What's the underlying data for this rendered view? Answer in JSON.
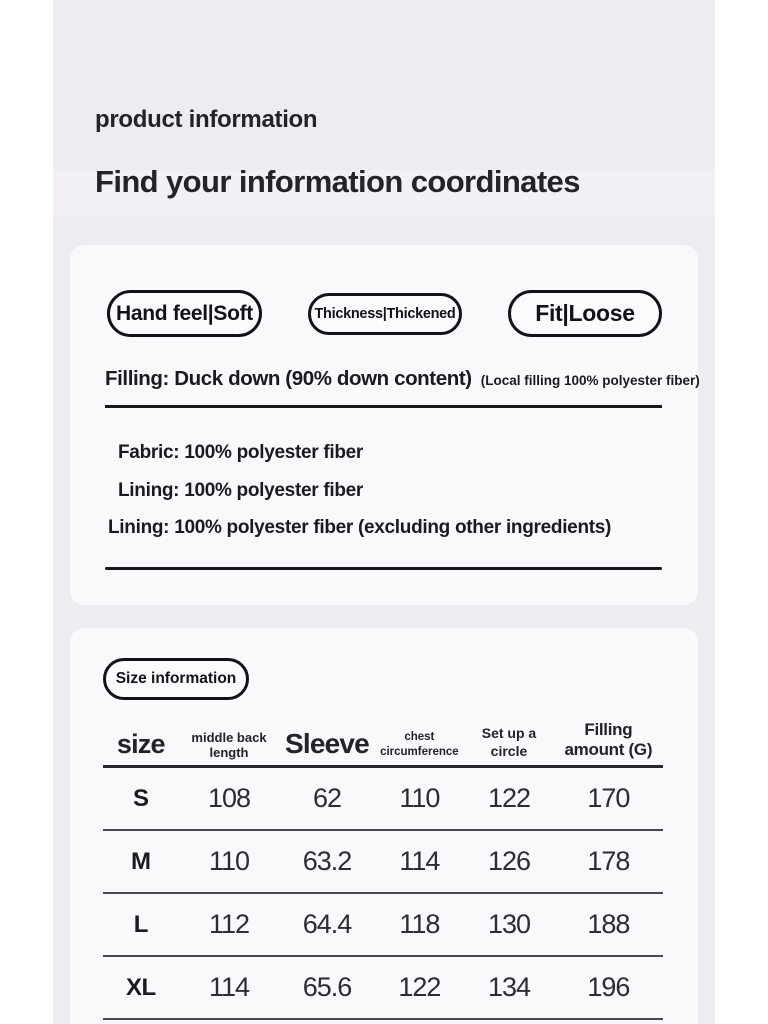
{
  "header": {
    "subtitle": "product information",
    "title": "Find your information coordinates"
  },
  "product_card": {
    "tags": [
      "Hand feel|Soft",
      "Thickness|Thickened",
      "Fit|Loose"
    ],
    "filling": "Filling: Duck down (90% down content)",
    "filling_note": "(Local filling 100% polyester fiber)",
    "materials": [
      "Fabric: 100% polyester fiber",
      "Lining: 100% polyester fiber",
      "Lining: 100% polyester fiber (excluding other ingredients)"
    ]
  },
  "size_card": {
    "badge": "Size information",
    "table": {
      "headers": [
        "size",
        "middle back length",
        "Sleeve",
        "chest\ncircumference",
        "Set up a\ncircle",
        "Filling amount (G)"
      ],
      "rows": [
        [
          "S",
          "108",
          "62",
          "110",
          "122",
          "170"
        ],
        [
          "M",
          "110",
          "63.2",
          "114",
          "126",
          "178"
        ],
        [
          "L",
          "112",
          "64.4",
          "118",
          "130",
          "188"
        ],
        [
          "XL",
          "114",
          "65.6",
          "122",
          "134",
          "196"
        ]
      ]
    }
  },
  "colors": {
    "page_margin": "#ffffff",
    "background": "#edecf1",
    "card": "#f9f9fb",
    "ink": "#17171b"
  }
}
